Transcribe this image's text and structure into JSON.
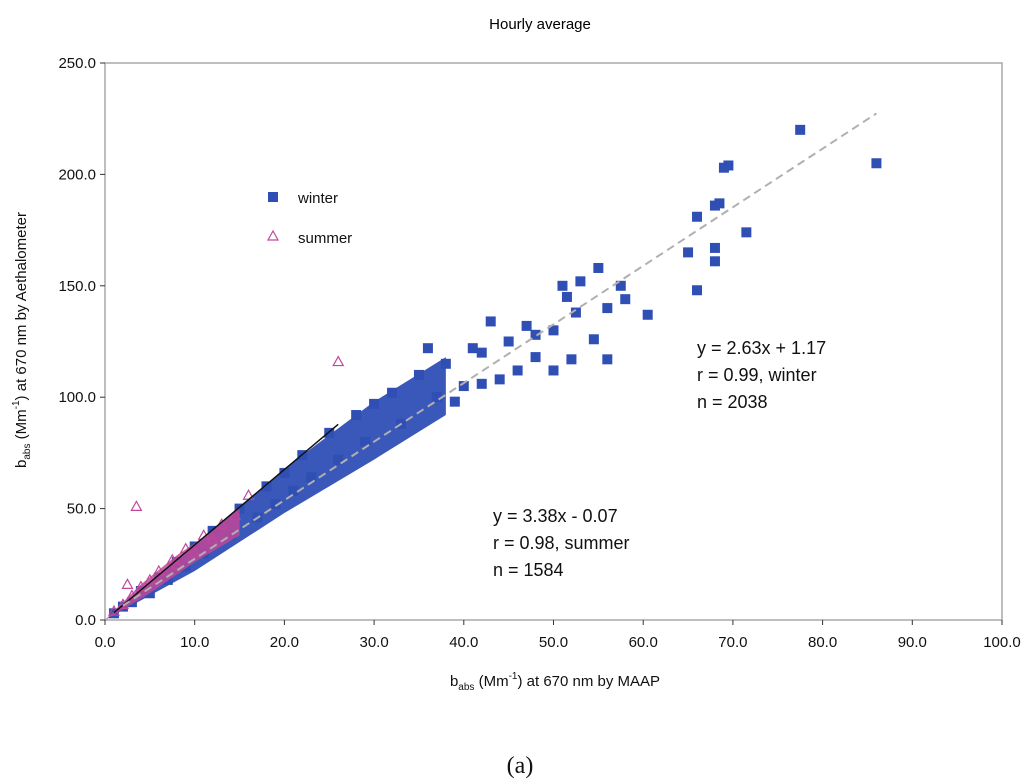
{
  "chart_data": {
    "type": "scatter",
    "title": "Hourly average",
    "xlabel": {
      "base": "b",
      "sub": "abs",
      "mid": " (Mm",
      "sup": "-1",
      "tail": ") at 670 nm by MAAP"
    },
    "ylabel": {
      "base": "b",
      "sub": "abs",
      "mid": " (Mm",
      "sup": "-1",
      "tail": ") at 670 nm by Aethalometer"
    },
    "xlim": [
      0,
      100
    ],
    "ylim": [
      0,
      250
    ],
    "x_ticks": [
      "0.0",
      "10.0",
      "20.0",
      "30.0",
      "40.0",
      "50.0",
      "60.0",
      "70.0",
      "80.0",
      "90.0",
      "100.0"
    ],
    "y_ticks": [
      "0.0",
      "50.0",
      "100.0",
      "150.0",
      "200.0",
      "250.0"
    ],
    "legend": {
      "placement": "upper-left",
      "entries": [
        "winter",
        "summer"
      ]
    },
    "colors": {
      "winter": "#2f4fb5",
      "summer": "#c0479a",
      "fit_summer": "#111111",
      "fit_winter": "#b0b0b0",
      "frame": "#a8a8a8"
    },
    "series": [
      {
        "name": "winter",
        "marker": "square",
        "points": [
          [
            86,
            205
          ],
          [
            77.5,
            220
          ],
          [
            69.5,
            204
          ],
          [
            69,
            203
          ],
          [
            68.5,
            187
          ],
          [
            68,
            186
          ],
          [
            71.5,
            174
          ],
          [
            68,
            167
          ],
          [
            68,
            161
          ],
          [
            65,
            165
          ],
          [
            66,
            181
          ],
          [
            66,
            148
          ],
          [
            60.5,
            137
          ],
          [
            58,
            144
          ],
          [
            57.5,
            150
          ],
          [
            55,
            158
          ],
          [
            56,
            140
          ],
          [
            56,
            117
          ],
          [
            54.5,
            126
          ],
          [
            53,
            152
          ],
          [
            51,
            150
          ],
          [
            51.5,
            145
          ],
          [
            52.5,
            138
          ],
          [
            50,
            130
          ],
          [
            48,
            128
          ],
          [
            47,
            132
          ],
          [
            45,
            125
          ],
          [
            42,
            120
          ],
          [
            43,
            134
          ],
          [
            41,
            122
          ],
          [
            38,
            115
          ],
          [
            36,
            122
          ],
          [
            35,
            110
          ],
          [
            32,
            102
          ],
          [
            30,
            97
          ],
          [
            28,
            92
          ],
          [
            25,
            84
          ],
          [
            22,
            74
          ],
          [
            20,
            66
          ],
          [
            18,
            60
          ],
          [
            15,
            50
          ],
          [
            12,
            40
          ],
          [
            10,
            33
          ],
          [
            8,
            26
          ],
          [
            6,
            19
          ],
          [
            4,
            13
          ],
          [
            2,
            6
          ],
          [
            1,
            3
          ],
          [
            46,
            112
          ],
          [
            44,
            108
          ],
          [
            40,
            105
          ],
          [
            37,
            100
          ],
          [
            33,
            88
          ],
          [
            29,
            80
          ],
          [
            26,
            72
          ],
          [
            23,
            64
          ],
          [
            21,
            58
          ],
          [
            19,
            52
          ],
          [
            17,
            46
          ],
          [
            14,
            38
          ],
          [
            11,
            30
          ],
          [
            9,
            24
          ],
          [
            7,
            18
          ],
          [
            5,
            12
          ],
          [
            3,
            8
          ],
          [
            52,
            117
          ],
          [
            50,
            112
          ],
          [
            48,
            118
          ],
          [
            42,
            106
          ],
          [
            39,
            98
          ]
        ]
      },
      {
        "name": "summer",
        "marker": "triangle",
        "points": [
          [
            26,
            116
          ],
          [
            3.5,
            51
          ],
          [
            16,
            56
          ],
          [
            14.5,
            47
          ],
          [
            13,
            43
          ],
          [
            11,
            38
          ],
          [
            9,
            32
          ],
          [
            7.5,
            27
          ],
          [
            6,
            22
          ],
          [
            5,
            18
          ],
          [
            4,
            15
          ],
          [
            3,
            11
          ],
          [
            2,
            7
          ],
          [
            1,
            4
          ],
          [
            2.5,
            16
          ],
          [
            8,
            25
          ],
          [
            10,
            30
          ],
          [
            12,
            36
          ]
        ]
      }
    ],
    "fits": [
      {
        "series": "summer",
        "equation": "y = 3.38x - 0.07",
        "slope": 3.38,
        "intercept": -0.07,
        "x_range": [
          1,
          26
        ],
        "style": "solid"
      },
      {
        "series": "winter",
        "equation": "y = 2.63x + 1.17",
        "slope": 2.63,
        "intercept": 1.17,
        "x_range": [
          2,
          86
        ],
        "style": "dashed"
      }
    ],
    "annotations": [
      {
        "lines": [
          "y = 2.63x + 1.17",
          "r = 0.99, winter",
          "n = 2038"
        ]
      },
      {
        "lines": [
          "y = 3.38x - 0.07",
          "r = 0.98, summer",
          "n = 1584"
        ]
      }
    ],
    "panel_caption": "(a)"
  }
}
